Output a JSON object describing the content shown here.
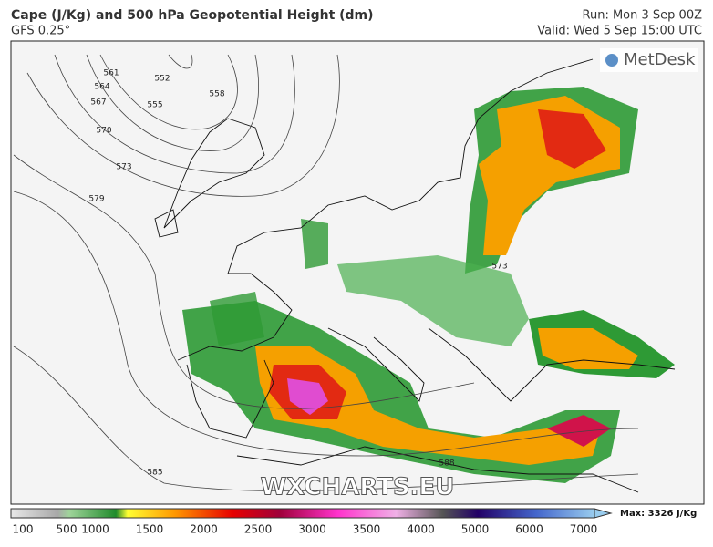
{
  "header": {
    "title": "Cape (J/Kg) and 500 hPa Geopotential Height (dm)",
    "subtitle": "GFS 0.25°",
    "run": "Run: Mon 3 Sep 00Z",
    "valid": "Valid: Wed 5 Sep 15:00 UTC"
  },
  "map": {
    "logo": "MetDesk",
    "watermark": "WXCHARTS.EU",
    "contour_labels": [
      561,
      564,
      567,
      570,
      573,
      579,
      552,
      555,
      558,
      585,
      588,
      573
    ]
  },
  "colorbar": {
    "ticks": [
      100,
      500,
      1000,
      1500,
      2000,
      2500,
      3000,
      3500,
      4000,
      5000,
      6000,
      7000
    ],
    "max_label": "Max: 3326 J/Kg"
  }
}
